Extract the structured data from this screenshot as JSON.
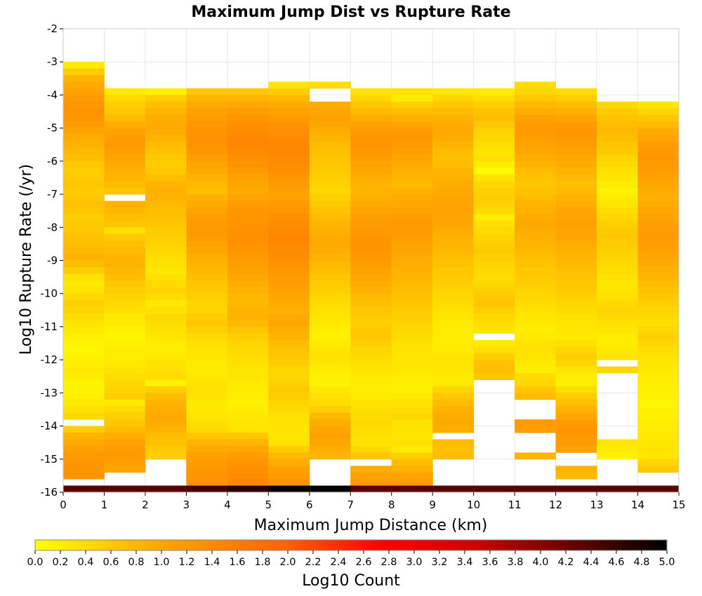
{
  "chart_data": {
    "type": "heatmap",
    "title": "Maximum Jump Dist vs Rupture Rate",
    "xlabel": "Maximum Jump Distance (km)",
    "ylabel": "Log10 Rupture Rate (/yr)",
    "xlim": [
      0,
      15
    ],
    "ylim": [
      -16,
      -2
    ],
    "x_ticks": [
      "0",
      "1",
      "2",
      "3",
      "4",
      "5",
      "6",
      "7",
      "8",
      "9",
      "10",
      "11",
      "12",
      "13",
      "14",
      "15"
    ],
    "y_ticks": [
      "-2",
      "-3",
      "-4",
      "-5",
      "-6",
      "-7",
      "-8",
      "-9",
      "-10",
      "-11",
      "-12",
      "-13",
      "-14",
      "-15",
      "-16"
    ],
    "x_bin_width": 1,
    "y_bin_height": 0.2,
    "colorbar": {
      "label": "Log10 Count",
      "range": [
        0.0,
        5.0
      ],
      "ticks": [
        "0.0",
        "0.2",
        "0.4",
        "0.6",
        "0.8",
        "1.0",
        "1.2",
        "1.4",
        "1.6",
        "1.8",
        "2.0",
        "2.2",
        "2.4",
        "2.6",
        "2.8",
        "3.0",
        "3.2",
        "3.4",
        "3.6",
        "3.8",
        "4.0",
        "4.2",
        "4.4",
        "4.6",
        "4.8",
        "5.0"
      ],
      "colors": [
        "#ffff00",
        "#ffa500",
        "#ff6000",
        "#ff0000",
        "#cc0000",
        "#000000"
      ]
    },
    "columns": [
      {
        "x": 0,
        "top": -3.0,
        "bottom": -16.0,
        "gaps": [
          [
            -13.8,
            -14.0
          ],
          [
            -15.6,
            -15.8
          ]
        ],
        "levels": [
          0.22,
          0.55,
          0.82,
          0.95,
          1.05,
          1.15,
          1.22,
          1.25,
          1.22,
          1.12,
          1.02,
          0.92,
          0.85,
          0.78,
          0.72,
          0.62,
          0.55,
          0.6,
          0.65,
          0.58,
          0.62,
          0.68,
          0.62,
          0.55,
          0.58,
          0.62,
          0.68,
          0.72,
          0.78,
          0.85,
          0.72,
          0.55,
          0.35,
          0.25,
          0.32,
          0.42,
          0.55,
          0.48,
          0.38,
          0.3,
          0.25,
          0.18,
          0.12,
          0.1,
          0.15,
          0.2,
          0.25,
          0.22,
          0.15,
          0.12,
          0.18,
          0.25,
          0.32,
          0.42
        ]
      },
      {
        "x": 1,
        "top": -3.8,
        "bottom": -16.0,
        "gaps": [
          [
            -7.0,
            -7.2
          ],
          [
            -13.9,
            -14.1
          ],
          [
            -15.4,
            -15.8
          ]
        ],
        "levels": [
          0.25,
          0.42,
          0.55,
          0.62,
          0.75,
          0.9,
          1.05,
          1.12,
          1.15,
          1.08,
          1.0,
          0.95,
          0.88,
          0.82,
          0.75,
          0.65,
          0.78,
          0.85,
          0.8,
          0.72,
          0.65,
          0.35,
          0.58,
          0.7,
          0.78,
          0.82,
          0.85,
          0.78,
          0.72,
          0.62,
          0.55,
          0.5,
          0.42,
          0.35,
          0.25,
          0.22,
          0.15,
          0.12,
          0.18,
          0.22,
          0.2,
          0.25,
          0.3,
          0.38,
          0.42,
          0.48,
          0.55
        ]
      },
      {
        "x": 2,
        "top": -3.8,
        "bottom": -16.0,
        "gaps": [
          [
            -15.0,
            -15.8
          ]
        ],
        "levels": [
          0.18,
          0.55,
          0.72,
          0.82,
          0.9,
          0.95,
          0.92,
          0.85,
          0.75,
          0.68,
          0.6,
          0.55,
          0.62,
          0.72,
          0.82,
          0.88,
          0.85,
          0.78,
          0.72,
          0.68,
          0.62,
          0.58,
          0.55,
          0.5,
          0.45,
          0.38,
          0.32,
          0.28,
          0.35,
          0.42,
          0.48,
          0.38,
          0.28,
          0.35,
          0.42,
          0.38,
          0.32,
          0.28,
          0.22,
          0.2,
          0.25,
          0.3,
          0.35,
          0.4
        ]
      },
      {
        "x": 3,
        "top": -3.8,
        "bottom": -16.0,
        "gaps": [],
        "levels": [
          0.62,
          0.82,
          0.95,
          1.05,
          1.12,
          1.2,
          1.25,
          1.28,
          1.25,
          1.2,
          1.1,
          1.02,
          0.95,
          0.85,
          0.78,
          0.72,
          0.85,
          0.95,
          1.02,
          1.1,
          1.15,
          1.18,
          1.12,
          1.05,
          0.98,
          0.92,
          0.85,
          0.78,
          0.72,
          0.65,
          0.6,
          0.55,
          0.5,
          0.48,
          0.55,
          0.62,
          0.52,
          0.42,
          0.35,
          0.3,
          0.28,
          0.25,
          0.22,
          0.25,
          0.3,
          0.35,
          0.3,
          0.25,
          0.25,
          0.3,
          0.35,
          0.42
        ]
      },
      {
        "x": 4,
        "top": -3.8,
        "bottom": -16.0,
        "gaps": [],
        "levels": [
          0.62,
          0.82,
          0.98,
          1.12,
          1.22,
          1.3,
          1.35,
          1.42,
          1.45,
          1.4,
          1.32,
          1.25,
          1.15,
          1.05,
          0.98,
          0.95,
          1.02,
          1.12,
          1.2,
          1.22,
          1.25,
          1.28,
          1.3,
          1.28,
          1.22,
          1.15,
          1.1,
          1.05,
          0.98,
          0.9,
          0.85,
          0.8,
          0.78,
          0.82,
          0.88,
          0.78,
          0.65,
          0.55,
          0.48,
          0.42,
          0.38,
          0.35,
          0.3,
          0.28,
          0.25,
          0.22,
          0.2,
          0.18,
          0.22,
          0.25,
          0.28,
          0.3
        ]
      },
      {
        "x": 5,
        "top": -3.6,
        "bottom": -16.0,
        "gaps": [],
        "levels": [
          0.3,
          0.55,
          0.78,
          0.92,
          1.05,
          1.15,
          1.25,
          1.32,
          1.38,
          1.42,
          1.45,
          1.4,
          1.35,
          1.3,
          1.22,
          1.15,
          1.1,
          1.05,
          1.15,
          1.22,
          1.3,
          1.35,
          1.4,
          1.45,
          1.42,
          1.38,
          1.32,
          1.28,
          1.22,
          1.18,
          1.12,
          1.05,
          0.98,
          0.92,
          0.88,
          0.95,
          1.0,
          0.92,
          0.85,
          0.75,
          0.68,
          0.62,
          0.55,
          0.48,
          0.45,
          0.52,
          0.58,
          0.55,
          0.48,
          0.42,
          0.35,
          0.32,
          0.3,
          0.3
        ]
      },
      {
        "x": 6,
        "top": -3.6,
        "bottom": -16.0,
        "gaps": [
          [
            -3.8,
            -4.2
          ],
          [
            -15.0,
            -15.8
          ]
        ],
        "levels": [
          0.4,
          0.55,
          0.78,
          0.92,
          1.0,
          1.05,
          0.98,
          0.9,
          0.82,
          0.75,
          0.7,
          0.65,
          0.62,
          0.58,
          0.55,
          0.5,
          0.45,
          0.52,
          0.6,
          0.68,
          0.75,
          0.82,
          0.88,
          0.92,
          0.95,
          0.9,
          0.85,
          0.78,
          0.72,
          0.65,
          0.58,
          0.52,
          0.45,
          0.4,
          0.35,
          0.3,
          0.25,
          0.2,
          0.18,
          0.22,
          0.28,
          0.32,
          0.28,
          0.22,
          0.18,
          0.15,
          0.25,
          0.35
        ]
      },
      {
        "x": 7,
        "top": -3.8,
        "bottom": -16.0,
        "gaps": [
          [
            -15.0,
            -15.2
          ]
        ],
        "levels": [
          0.3,
          0.45,
          0.62,
          0.78,
          0.92,
          1.05,
          1.15,
          1.22,
          1.25,
          1.2,
          1.12,
          1.05,
          0.98,
          0.92,
          0.85,
          0.82,
          0.88,
          0.95,
          1.02,
          1.08,
          1.12,
          1.18,
          1.22,
          1.25,
          1.22,
          1.18,
          1.12,
          1.05,
          0.98,
          0.92,
          0.85,
          0.78,
          0.72,
          0.65,
          0.58,
          0.55,
          0.6,
          0.62,
          0.55,
          0.48,
          0.42,
          0.35,
          0.3,
          0.25,
          0.22,
          0.2,
          0.25,
          0.3,
          0.35,
          0.4,
          0.42,
          0.38,
          0.35
        ]
      },
      {
        "x": 8,
        "top": -3.8,
        "bottom": -16.0,
        "gaps": [],
        "levels": [
          0.35,
          0.22,
          0.52,
          0.72,
          0.88,
          1.02,
          1.15,
          1.22,
          1.18,
          1.1,
          1.02,
          0.95,
          0.88,
          0.82,
          0.78,
          0.85,
          0.92,
          0.98,
          1.05,
          1.12,
          1.18,
          1.15,
          1.1,
          1.05,
          1.0,
          0.95,
          0.9,
          0.85,
          0.82,
          0.78,
          0.72,
          0.68,
          0.62,
          0.58,
          0.55,
          0.5,
          0.45,
          0.4,
          0.35,
          0.32,
          0.3,
          0.28,
          0.25,
          0.22,
          0.2,
          0.18,
          0.25,
          0.32,
          0.38,
          0.45,
          0.35,
          0.3,
          0.28
        ]
      },
      {
        "x": 9,
        "top": -3.8,
        "bottom": -16.0,
        "gaps": [
          [
            -14.2,
            -14.4
          ],
          [
            -15.0,
            -15.8
          ]
        ],
        "levels": [
          0.25,
          0.45,
          0.62,
          0.75,
          0.85,
          0.92,
          0.95,
          0.9,
          0.82,
          0.75,
          0.7,
          0.75,
          0.82,
          0.88,
          0.92,
          0.95,
          0.98,
          1.02,
          1.05,
          1.02,
          0.98,
          0.92,
          0.88,
          0.82,
          0.78,
          0.72,
          0.68,
          0.62,
          0.58,
          0.55,
          0.5,
          0.45,
          0.4,
          0.35,
          0.3,
          0.25,
          0.22,
          0.2,
          0.22,
          0.25,
          0.28,
          0.3,
          0.28,
          0.25
        ]
      },
      {
        "x": 10,
        "top": -3.8,
        "bottom": -16.0,
        "gaps": [
          [
            -11.2,
            -11.4
          ],
          [
            -12.6,
            -15.8
          ]
        ],
        "levels": [
          0.22,
          0.38,
          0.55,
          0.68,
          0.75,
          0.62,
          0.5,
          0.45,
          0.38,
          0.3,
          0.35,
          0.2,
          0.05,
          0.3,
          0.45,
          0.52,
          0.55,
          0.5,
          0.42,
          0.2,
          0.35,
          0.42,
          0.48,
          0.55,
          0.6,
          0.55,
          0.48,
          0.42,
          0.38,
          0.45,
          0.52,
          0.6,
          0.65,
          0.55,
          0.45,
          0.38,
          0.32,
          0.28
        ]
      },
      {
        "x": 11,
        "top": -3.6,
        "bottom": -16.0,
        "gaps": [
          [
            -13.2,
            -13.9
          ],
          [
            -14.2,
            -14.8
          ],
          [
            -15.0,
            -15.8
          ]
        ],
        "levels": [
          0.4,
          0.45,
          0.62,
          0.78,
          0.92,
          1.05,
          1.12,
          1.15,
          1.1,
          1.05,
          0.98,
          0.9,
          0.82,
          0.75,
          0.68,
          0.62,
          0.68,
          0.75,
          0.82,
          0.88,
          0.92,
          0.95,
          0.92,
          0.88,
          0.82,
          0.78,
          0.72,
          0.68,
          0.62,
          0.58,
          0.55,
          0.5,
          0.45,
          0.4,
          0.35,
          0.3,
          0.25,
          0.2,
          0.25,
          0.3,
          0.35,
          0.3,
          0.25,
          0.2
        ]
      },
      {
        "x": 12,
        "top": -3.8,
        "bottom": -16.0,
        "gaps": [
          [
            -13.9,
            -14.1
          ],
          [
            -14.8,
            -15.2
          ],
          [
            -15.6,
            -15.8
          ]
        ],
        "levels": [
          0.38,
          0.55,
          0.72,
          0.88,
          1.02,
          1.15,
          1.22,
          1.18,
          1.12,
          1.05,
          0.98,
          0.92,
          0.85,
          0.78,
          0.72,
          0.78,
          0.85,
          0.92,
          0.98,
          1.02,
          1.05,
          1.02,
          0.98,
          0.92,
          0.88,
          0.82,
          0.78,
          0.72,
          0.68,
          0.62,
          0.58,
          0.52,
          0.45,
          0.4,
          0.35,
          0.3,
          0.28,
          0.25,
          0.35,
          0.45,
          0.55,
          0.48,
          0.3,
          0.22,
          0.2
        ]
      },
      {
        "x": 13,
        "top": -4.2,
        "bottom": -16.0,
        "gaps": [
          [
            -12.0,
            -12.2
          ],
          [
            -12.4,
            -14.4
          ],
          [
            -15.0,
            -15.8
          ]
        ],
        "levels": [
          0.45,
          0.58,
          0.68,
          0.75,
          0.78,
          0.72,
          0.65,
          0.58,
          0.5,
          0.42,
          0.35,
          0.28,
          0.22,
          0.15,
          0.22,
          0.3,
          0.38,
          0.45,
          0.52,
          0.58,
          0.62,
          0.58,
          0.52,
          0.48,
          0.42,
          0.38,
          0.32,
          0.28,
          0.3,
          0.35,
          0.42,
          0.48,
          0.42,
          0.35,
          0.28,
          0.22,
          0.2,
          0.25,
          0.3,
          0.35
        ]
      },
      {
        "x": 14,
        "top": -4.2,
        "bottom": -16.0,
        "gaps": [
          [
            -15.4,
            -15.8
          ]
        ],
        "levels": [
          0.28,
          0.45,
          0.62,
          0.78,
          0.92,
          1.02,
          1.12,
          1.18,
          1.22,
          1.18,
          1.12,
          1.05,
          0.98,
          0.92,
          0.88,
          0.92,
          0.98,
          1.05,
          1.1,
          1.12,
          1.15,
          1.12,
          1.08,
          1.02,
          0.95,
          0.88,
          0.82,
          0.75,
          0.68,
          0.62,
          0.55,
          0.48,
          0.42,
          0.38,
          0.45,
          0.52,
          0.45,
          0.38,
          0.32,
          0.28,
          0.25,
          0.22,
          0.2,
          0.18,
          0.15,
          0.12,
          0.15,
          0.18,
          0.2,
          0.22,
          0.25,
          0.28,
          0.3
        ]
      }
    ],
    "bottom_row": {
      "y_low": -16.0,
      "y_high": -15.8,
      "levels": [
        4.35,
        4.35,
        4.35,
        4.5,
        4.7,
        4.95,
        4.95,
        4.35,
        4.35,
        4.35,
        4.35,
        4.35,
        4.35,
        4.35,
        4.35
      ]
    }
  }
}
